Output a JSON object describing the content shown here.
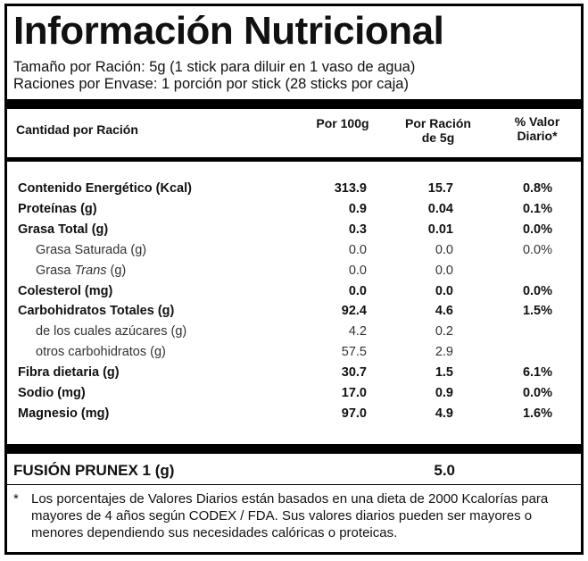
{
  "title": "Información Nutricional",
  "serving": {
    "size": "Tamaño por Ración: 5g (1 stick para diluir en 1 vaso de agua)",
    "per_container": "Raciones por Envase: 1 porción por stick (28 sticks por caja)"
  },
  "header": {
    "amount_label": "Cantidad por Ración",
    "col1": "Por 100g",
    "col2_line1": "Por Ración",
    "col2_line2": "de 5g",
    "col3_line1": "% Valor",
    "col3_line2": "Diario*"
  },
  "rows": [
    {
      "name": "Contenido Energético (Kcal)",
      "per100": "313.9",
      "perServing": "15.7",
      "dv": "0.8%",
      "style": "bold"
    },
    {
      "name": "Proteínas (g)",
      "per100": "0.9",
      "perServing": "0.04",
      "dv": "0.1%",
      "style": "bold"
    },
    {
      "name": "Grasa Total (g)",
      "per100": "0.3",
      "perServing": "0.01",
      "dv": "0.0%",
      "style": "bold"
    },
    {
      "name": "Grasa Saturada (g)",
      "per100": "0.0",
      "perServing": "0.0",
      "dv": "0.0%",
      "style": "sub"
    },
    {
      "name_prefix": "Grasa ",
      "name_italic": "Trans",
      "name_suffix": " (g)",
      "per100": "0.0",
      "perServing": "0.0",
      "dv": "",
      "style": "sub"
    },
    {
      "name": "Colesterol (mg)",
      "per100": "0.0",
      "perServing": "0.0",
      "dv": "0.0%",
      "style": "bold"
    },
    {
      "name": "Carbohidratos Totales  (g)",
      "per100": "92.4",
      "perServing": "4.6",
      "dv": "1.5%",
      "style": "bold"
    },
    {
      "name": "de los cuales azúcares (g)",
      "per100": "4.2",
      "perServing": "0.2",
      "dv": "",
      "style": "sub"
    },
    {
      "name": "otros carbohidratos (g)",
      "per100": "57.5",
      "perServing": "2.9",
      "dv": "",
      "style": "sub"
    },
    {
      "name": "Fibra dietaria (g)",
      "per100": "30.7",
      "perServing": "1.5",
      "dv": "6.1%",
      "style": "bold"
    },
    {
      "name": "Sodio (mg)",
      "per100": "17.0",
      "perServing": "0.9",
      "dv": "0.0%",
      "style": "bold"
    },
    {
      "name": "Magnesio (mg)",
      "per100": "97.0",
      "perServing": "4.9",
      "dv": "1.6%",
      "style": "bold"
    }
  ],
  "fusion": {
    "name": "FUSIÓN PRUNEX 1 (g)",
    "value": "5.0"
  },
  "footnote": {
    "mark": "*",
    "text": "Los porcentajes de Valores Diarios están basados en una dieta de 2000 Kcalorías para mayores de 4 años según CODEX / FDA. Sus valores diarios pueden ser mayores o menores dependiendo sus necesidades calóricas o proteicas."
  }
}
